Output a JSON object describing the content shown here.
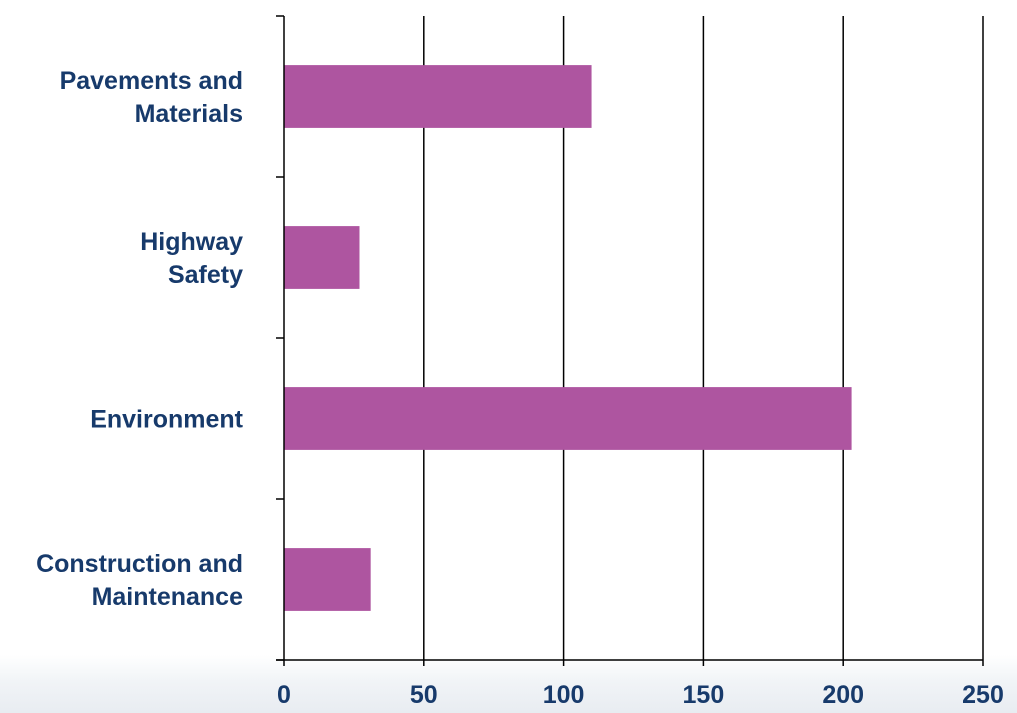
{
  "chart_data": {
    "type": "bar",
    "orientation": "horizontal",
    "categories": [
      [
        "Pavements and",
        "Materials"
      ],
      [
        "Highway",
        "Safety"
      ],
      [
        "Environment"
      ],
      [
        "Construction and",
        "Maintenance"
      ]
    ],
    "values": [
      110,
      27,
      203,
      31
    ],
    "xlim": [
      0,
      250
    ],
    "xticks": [
      "0",
      "50",
      "100",
      "150",
      "200",
      "250"
    ],
    "grid": "vertical",
    "legend": "none",
    "title": "",
    "xlabel": "",
    "ylabel": "",
    "colors": {
      "bar": "#ae55a0",
      "label": "#173a6b",
      "grid": "#000000"
    }
  }
}
